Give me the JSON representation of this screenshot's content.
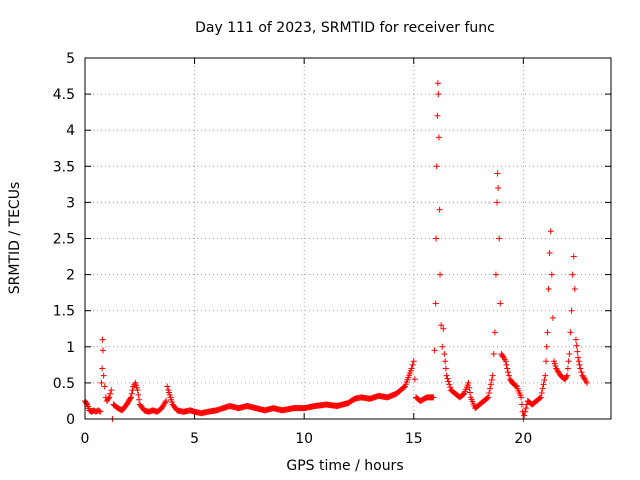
{
  "chart_data": {
    "type": "scatter",
    "title": "Day 111 of 2023, SRMTID for receiver func",
    "xlabel": "GPS time / hours",
    "ylabel": "SRMTID / TECUs",
    "xlim": [
      0,
      24
    ],
    "ylim": [
      0,
      5
    ],
    "xticks": [
      "0",
      "5",
      "10",
      "15",
      "20"
    ],
    "yticks": [
      "0",
      "0.5",
      "1",
      "1.5",
      "2",
      "2.5",
      "3",
      "3.5",
      "4",
      "4.5",
      "5"
    ],
    "grid": true,
    "marker": "plus",
    "color": "#ff0000",
    "series": [
      {
        "name": "SRMTID",
        "points": [
          [
            0.0,
            0.25
          ],
          [
            0.1,
            0.2
          ],
          [
            0.2,
            0.12
          ],
          [
            0.3,
            0.1
          ],
          [
            0.4,
            0.12
          ],
          [
            0.5,
            0.1
          ],
          [
            0.6,
            0.12
          ],
          [
            0.7,
            0.1
          ],
          [
            0.75,
            0.5
          ],
          [
            0.78,
            0.7
          ],
          [
            0.8,
            1.1
          ],
          [
            0.82,
            0.95
          ],
          [
            0.85,
            0.6
          ],
          [
            0.9,
            0.45
          ],
          [
            0.95,
            0.3
          ],
          [
            1.0,
            0.25
          ],
          [
            1.1,
            0.3
          ],
          [
            1.2,
            0.4
          ],
          [
            1.25,
            0.0
          ],
          [
            1.3,
            0.2
          ],
          [
            1.5,
            0.15
          ],
          [
            1.7,
            0.12
          ],
          [
            1.9,
            0.2
          ],
          [
            2.0,
            0.25
          ],
          [
            2.1,
            0.3
          ],
          [
            2.2,
            0.45
          ],
          [
            2.3,
            0.5
          ],
          [
            2.4,
            0.4
          ],
          [
            2.5,
            0.2
          ],
          [
            2.7,
            0.12
          ],
          [
            2.9,
            0.1
          ],
          [
            3.1,
            0.12
          ],
          [
            3.3,
            0.1
          ],
          [
            3.5,
            0.15
          ],
          [
            3.7,
            0.25
          ],
          [
            3.75,
            0.45
          ],
          [
            3.8,
            0.4
          ],
          [
            3.9,
            0.3
          ],
          [
            4.0,
            0.2
          ],
          [
            4.2,
            0.12
          ],
          [
            4.5,
            0.1
          ],
          [
            4.8,
            0.12
          ],
          [
            5.0,
            0.1
          ],
          [
            5.3,
            0.08
          ],
          [
            5.6,
            0.1
          ],
          [
            6.0,
            0.12
          ],
          [
            6.3,
            0.15
          ],
          [
            6.6,
            0.18
          ],
          [
            7.0,
            0.15
          ],
          [
            7.4,
            0.18
          ],
          [
            7.8,
            0.15
          ],
          [
            8.2,
            0.12
          ],
          [
            8.6,
            0.15
          ],
          [
            9.0,
            0.12
          ],
          [
            9.5,
            0.15
          ],
          [
            10.0,
            0.15
          ],
          [
            10.5,
            0.18
          ],
          [
            11.0,
            0.2
          ],
          [
            11.5,
            0.18
          ],
          [
            12.0,
            0.22
          ],
          [
            12.3,
            0.28
          ],
          [
            12.6,
            0.3
          ],
          [
            13.0,
            0.28
          ],
          [
            13.4,
            0.32
          ],
          [
            13.8,
            0.3
          ],
          [
            14.2,
            0.35
          ],
          [
            14.6,
            0.45
          ],
          [
            14.9,
            0.7
          ],
          [
            15.0,
            0.8
          ],
          [
            15.1,
            0.3
          ],
          [
            15.3,
            0.25
          ],
          [
            15.6,
            0.3
          ],
          [
            15.9,
            0.3
          ],
          [
            16.0,
            1.6
          ],
          [
            16.02,
            2.5
          ],
          [
            16.05,
            3.5
          ],
          [
            16.08,
            4.2
          ],
          [
            16.1,
            4.65
          ],
          [
            16.12,
            4.5
          ],
          [
            16.15,
            3.9
          ],
          [
            16.18,
            2.9
          ],
          [
            16.2,
            2.0
          ],
          [
            16.25,
            1.3
          ],
          [
            16.3,
            1.0
          ],
          [
            16.35,
            1.25
          ],
          [
            16.4,
            0.9
          ],
          [
            16.5,
            0.6
          ],
          [
            16.7,
            0.4
          ],
          [
            16.9,
            0.35
          ],
          [
            17.1,
            0.3
          ],
          [
            17.3,
            0.35
          ],
          [
            17.5,
            0.5
          ],
          [
            17.6,
            0.3
          ],
          [
            17.8,
            0.15
          ],
          [
            18.0,
            0.2
          ],
          [
            18.2,
            0.25
          ],
          [
            18.4,
            0.3
          ],
          [
            18.6,
            0.6
          ],
          [
            18.7,
            1.2
          ],
          [
            18.75,
            2.0
          ],
          [
            18.8,
            3.0
          ],
          [
            18.82,
            3.4
          ],
          [
            18.85,
            3.2
          ],
          [
            18.9,
            2.5
          ],
          [
            18.95,
            1.6
          ],
          [
            19.0,
            0.9
          ],
          [
            19.1,
            0.85
          ],
          [
            19.2,
            0.8
          ],
          [
            19.3,
            0.65
          ],
          [
            19.4,
            0.55
          ],
          [
            19.5,
            0.5
          ],
          [
            19.7,
            0.45
          ],
          [
            19.9,
            0.3
          ],
          [
            20.0,
            0.0
          ],
          [
            20.2,
            0.25
          ],
          [
            20.4,
            0.2
          ],
          [
            20.6,
            0.25
          ],
          [
            20.8,
            0.3
          ],
          [
            21.0,
            0.6
          ],
          [
            21.1,
            1.2
          ],
          [
            21.15,
            1.8
          ],
          [
            21.2,
            2.3
          ],
          [
            21.25,
            2.6
          ],
          [
            21.3,
            2.0
          ],
          [
            21.35,
            1.4
          ],
          [
            21.4,
            0.8
          ],
          [
            21.5,
            0.7
          ],
          [
            21.7,
            0.6
          ],
          [
            21.9,
            0.55
          ],
          [
            22.0,
            0.6
          ],
          [
            22.1,
            0.9
          ],
          [
            22.2,
            1.5
          ],
          [
            22.25,
            2.0
          ],
          [
            22.3,
            2.25
          ],
          [
            22.35,
            1.8
          ],
          [
            22.4,
            1.1
          ],
          [
            22.5,
            0.85
          ],
          [
            22.6,
            0.7
          ],
          [
            22.7,
            0.6
          ],
          [
            22.8,
            0.55
          ],
          [
            22.9,
            0.5
          ]
        ]
      }
    ]
  }
}
